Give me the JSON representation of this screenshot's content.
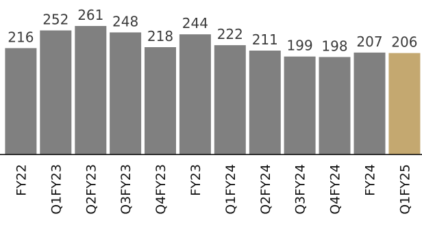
{
  "chart_data": {
    "type": "bar",
    "title": "",
    "xlabel": "",
    "ylabel": "",
    "categories": [
      "FY22",
      "Q1FY23",
      "Q2FY23",
      "Q3FY23",
      "Q4FY23",
      "FY23",
      "Q1FY24",
      "Q2FY24",
      "Q3FY24",
      "Q4FY24",
      "FY24",
      "Q1FY25"
    ],
    "values": [
      216,
      252,
      261,
      248,
      218,
      244,
      222,
      211,
      199,
      198,
      207,
      206
    ],
    "ylim": [
      0,
      261
    ],
    "grid": false,
    "legend": "none",
    "colors": {
      "default": "#808080",
      "highlight": "#c4a870",
      "axis": "#000000",
      "value_text": "#3a3a3a",
      "category_text": "#111111"
    },
    "highlight_index": 11
  }
}
